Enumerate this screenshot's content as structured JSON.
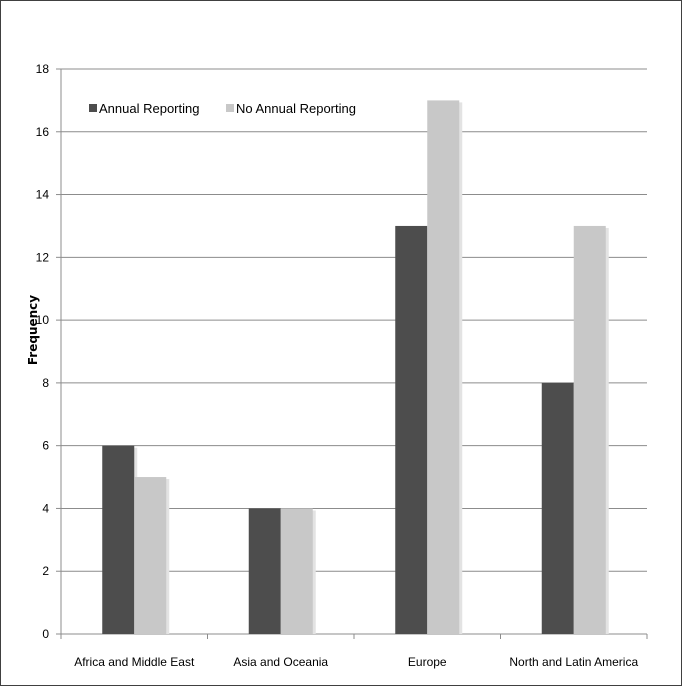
{
  "chart_data": {
    "type": "bar",
    "title": "",
    "xlabel": "",
    "ylabel": "Frequency",
    "ylim": [
      0,
      18
    ],
    "yticks": [
      "0",
      "2",
      "4",
      "6",
      "8",
      "10",
      "12",
      "14",
      "16",
      "18"
    ],
    "grid": true,
    "legend_position": "top-left",
    "categories": [
      "Africa and Middle East",
      "Asia and Oceania",
      "Europe",
      "North and Latin America"
    ],
    "series": [
      {
        "name": "Annual Reporting",
        "color": "#4d4d4d",
        "values": [
          6,
          4,
          13,
          8
        ]
      },
      {
        "name": "No Annual Reporting",
        "color": "#c8c8c8",
        "values": [
          5,
          4,
          17,
          13
        ]
      }
    ]
  }
}
